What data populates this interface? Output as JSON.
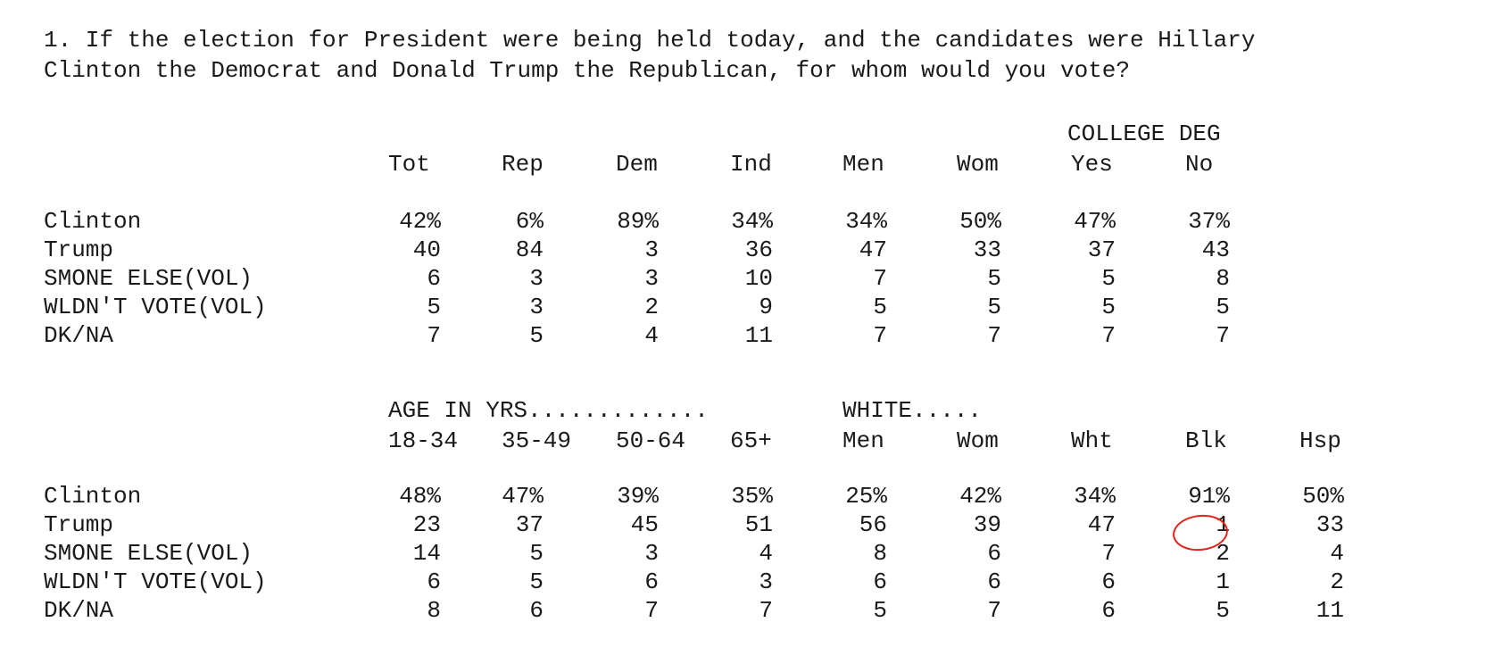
{
  "question": {
    "line1": "1. If the election for President were being held today, and the candidates were Hillary",
    "line2": "Clinton the Democrat and Donald Trump the Republican, for whom would you vote?"
  },
  "table1": {
    "group_header": "COLLEGE DEG",
    "columns": [
      "Tot",
      "Rep",
      "Dem",
      "Ind",
      "Men",
      "Wom",
      "Yes",
      "No"
    ],
    "rows": [
      {
        "label": "Clinton",
        "values": [
          "42%",
          "6%",
          "89%",
          "34%",
          "34%",
          "50%",
          "47%",
          "37%"
        ]
      },
      {
        "label": "Trump",
        "values": [
          "40",
          "84",
          "3",
          "36",
          "47",
          "33",
          "37",
          "43"
        ]
      },
      {
        "label": "SMONE ELSE(VOL)",
        "values": [
          "6",
          "3",
          "3",
          "10",
          "7",
          "5",
          "5",
          "8"
        ]
      },
      {
        "label": "WLDN'T VOTE(VOL)",
        "values": [
          "5",
          "3",
          "2",
          "9",
          "5",
          "5",
          "5",
          "5"
        ]
      },
      {
        "label": "DK/NA",
        "values": [
          "7",
          "5",
          "4",
          "11",
          "7",
          "7",
          "7",
          "7"
        ]
      }
    ]
  },
  "table2": {
    "group_header_age": "AGE IN YRS.............",
    "group_header_white": "WHITE.....",
    "columns": [
      "18-34",
      "35-49",
      "50-64",
      "65+",
      "Men",
      "Wom",
      "Wht",
      "Blk",
      "Hsp"
    ],
    "rows": [
      {
        "label": "Clinton",
        "values": [
          "48%",
          "47%",
          "39%",
          "35%",
          "25%",
          "42%",
          "34%",
          "91%",
          "50%"
        ]
      },
      {
        "label": "Trump",
        "values": [
          "23",
          "37",
          "45",
          "51",
          "56",
          "39",
          "47",
          "1",
          "33"
        ]
      },
      {
        "label": "SMONE ELSE(VOL)",
        "values": [
          "14",
          "5",
          "3",
          "4",
          "8",
          "6",
          "7",
          "2",
          "4"
        ]
      },
      {
        "label": "WLDN'T VOTE(VOL)",
        "values": [
          "6",
          "5",
          "6",
          "3",
          "6",
          "6",
          "6",
          "1",
          "2"
        ]
      },
      {
        "label": "DK/NA",
        "values": [
          "8",
          "6",
          "7",
          "7",
          "5",
          "7",
          "6",
          "5",
          "11"
        ]
      }
    ],
    "highlight": {
      "row": "Trump",
      "column": "Blk",
      "color": "#e0231c"
    }
  }
}
